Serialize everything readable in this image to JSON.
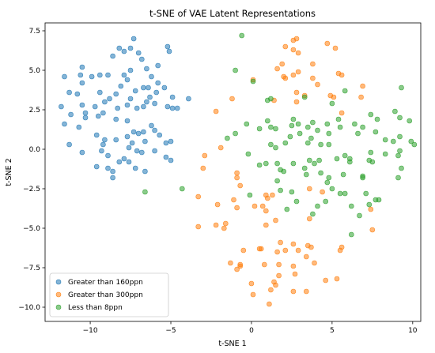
{
  "chart_data": {
    "type": "scatter",
    "title": "t-SNE of VAE Latent Representations",
    "xlabel": "t-SNE 1",
    "ylabel": "t-SNE 2",
    "xlim": [
      -12.8,
      10.5
    ],
    "ylim": [
      -10.9,
      8.0
    ],
    "xticks": [
      -10,
      -5,
      0,
      5,
      10
    ],
    "yticks": [
      -10.0,
      -7.5,
      -5.0,
      -2.5,
      0.0,
      2.5,
      5.0,
      7.5
    ],
    "grid": false,
    "legend_position": "lower-left",
    "series": [
      {
        "name": "Greater than 160ppn",
        "color": "#1f77b4",
        "points": [
          [
            -11.6,
            4.6
          ],
          [
            -10.6,
            4.7
          ],
          [
            -10.5,
            5.2
          ],
          [
            -9.9,
            4.6
          ],
          [
            -9.4,
            4.7
          ],
          [
            -8.9,
            4.7
          ],
          [
            -8.2,
            6.4
          ],
          [
            -7.9,
            6.2
          ],
          [
            -7.5,
            6.4
          ],
          [
            -7.3,
            7.0
          ],
          [
            -7.0,
            6.1
          ],
          [
            -6.8,
            5.7
          ],
          [
            -5.2,
            6.5
          ],
          [
            -5.1,
            6.2
          ],
          [
            -5.8,
            5.3
          ],
          [
            -6.5,
            5.1
          ],
          [
            -7.5,
            5.0
          ],
          [
            -7.9,
            4.7
          ],
          [
            -8.6,
            5.9
          ],
          [
            -7.7,
            4.4
          ],
          [
            -6.2,
            4.6
          ],
          [
            -5.8,
            4.2
          ],
          [
            -5.4,
            3.9
          ],
          [
            -5.9,
            3.6
          ],
          [
            -6.0,
            2.9
          ],
          [
            -4.6,
            2.6
          ],
          [
            -4.9,
            3.3
          ],
          [
            -3.9,
            3.2
          ],
          [
            -5.2,
            2.7
          ],
          [
            -6.7,
            3.9
          ],
          [
            -6.4,
            3.9
          ],
          [
            -6.3,
            3.3
          ],
          [
            -6.5,
            3.0
          ],
          [
            -6.7,
            2.7
          ],
          [
            -7.2,
            3.7
          ],
          [
            -7.5,
            3.2
          ],
          [
            -7.1,
            2.6
          ],
          [
            -7.7,
            2.8
          ],
          [
            -8.1,
            4.0
          ],
          [
            -8.4,
            3.5
          ],
          [
            -8.8,
            3.2
          ],
          [
            -9.1,
            3.0
          ],
          [
            -9.4,
            3.6
          ],
          [
            -9.7,
            2.7
          ],
          [
            -10.5,
            4.2
          ],
          [
            -10.5,
            2.8
          ],
          [
            -10.8,
            3.5
          ],
          [
            -11.3,
            3.6
          ],
          [
            -11.8,
            2.7
          ],
          [
            -11.2,
            2.2
          ],
          [
            -10.3,
            2.3
          ],
          [
            -10.3,
            2.0
          ],
          [
            -9.5,
            2.1
          ],
          [
            -9.2,
            2.3
          ],
          [
            -8.3,
            2.6
          ],
          [
            -8.4,
            1.9
          ],
          [
            -7.7,
            1.8
          ],
          [
            -7.3,
            1.1
          ],
          [
            -7.0,
            1.0
          ],
          [
            -6.7,
            1.1
          ],
          [
            -6.2,
            1.5
          ],
          [
            -6.0,
            1.2
          ],
          [
            -11.6,
            1.6
          ],
          [
            -10.7,
            1.4
          ],
          [
            -9.6,
            0.9
          ],
          [
            -9.1,
            0.6
          ],
          [
            -9.2,
            0.3
          ],
          [
            -8.4,
            0.6
          ],
          [
            -7.7,
            0.8
          ],
          [
            -7.4,
            0.4
          ],
          [
            -7.6,
            0.1
          ],
          [
            -6.6,
            0.5
          ],
          [
            -5.7,
            0.9
          ],
          [
            -5.3,
            0.4
          ],
          [
            -5.0,
            0.5
          ],
          [
            -4.9,
            2.6
          ],
          [
            -11.3,
            0.3
          ],
          [
            -10.5,
            -0.2
          ],
          [
            -9.3,
            -0.1
          ],
          [
            -8.9,
            -0.4
          ],
          [
            -8.2,
            -0.8
          ],
          [
            -7.6,
            -0.8
          ],
          [
            -7.9,
            -0.6
          ],
          [
            -7.1,
            -0.1
          ],
          [
            -6.8,
            -0.2
          ],
          [
            -6.0,
            -0.1
          ],
          [
            -5.3,
            -0.5
          ],
          [
            -5.0,
            -0.7
          ],
          [
            -7.2,
            -1.2
          ],
          [
            -6.6,
            -1.4
          ],
          [
            -9.6,
            -1.1
          ],
          [
            -8.9,
            -1.2
          ],
          [
            -8.6,
            -1.4
          ],
          [
            -8.6,
            -1.8
          ]
        ]
      },
      {
        "name": "Greater than 300ppn",
        "color": "#ff7f0e",
        "points": [
          [
            2.6,
            6.9
          ],
          [
            2.8,
            7.0
          ],
          [
            4.7,
            6.7
          ],
          [
            5.2,
            6.4
          ],
          [
            2.1,
            6.5
          ],
          [
            2.6,
            6.3
          ],
          [
            2.9,
            6.1
          ],
          [
            1.9,
            5.4
          ],
          [
            3.8,
            5.4
          ],
          [
            1.6,
            5.1
          ],
          [
            2.6,
            4.7
          ],
          [
            2.9,
            4.9
          ],
          [
            5.4,
            4.8
          ],
          [
            5.6,
            4.7
          ],
          [
            2.1,
            4.5
          ],
          [
            2.0,
            4.6
          ],
          [
            3.8,
            4.5
          ],
          [
            4.1,
            4.1
          ],
          [
            0.1,
            4.4
          ],
          [
            6.9,
            4.0
          ],
          [
            2.8,
            3.6
          ],
          [
            3.3,
            3.4
          ],
          [
            4.9,
            3.4
          ],
          [
            5.1,
            3.3
          ],
          [
            6.8,
            3.3
          ],
          [
            1.4,
            3.1
          ],
          [
            2.8,
            3.0
          ],
          [
            -1.2,
            3.2
          ],
          [
            -2.2,
            2.4
          ],
          [
            -1.9,
            0.1
          ],
          [
            5.6,
            2.3
          ],
          [
            -2.9,
            -0.4
          ],
          [
            -3.0,
            -1.2
          ],
          [
            -0.9,
            -1.5
          ],
          [
            -0.9,
            -1.8
          ],
          [
            -0.7,
            -2.3
          ],
          [
            3.6,
            -2.5
          ],
          [
            4.4,
            -2.7
          ],
          [
            -3.3,
            -3.0
          ],
          [
            -1.1,
            -3.2
          ],
          [
            -2.1,
            -3.5
          ],
          [
            -0.9,
            -3.7
          ],
          [
            0.2,
            -3.6
          ],
          [
            0.7,
            -3.6
          ],
          [
            0.9,
            -2.9
          ],
          [
            1.0,
            -3.1
          ],
          [
            1.3,
            -2.9
          ],
          [
            0.9,
            -3.9
          ],
          [
            7.4,
            -3.8
          ],
          [
            1.5,
            -4.5
          ],
          [
            3.6,
            -4.4
          ],
          [
            0.9,
            -4.8
          ],
          [
            -1.6,
            -4.7
          ],
          [
            -1.7,
            -5.0
          ],
          [
            -3.3,
            -4.9
          ],
          [
            -2.2,
            -4.8
          ],
          [
            7.5,
            -5.1
          ],
          [
            1.8,
            -5.9
          ],
          [
            2.6,
            -6.0
          ],
          [
            3.5,
            -6.1
          ],
          [
            3.7,
            -6.2
          ],
          [
            5.6,
            -6.2
          ],
          [
            5.5,
            -6.4
          ],
          [
            0.6,
            -6.3
          ],
          [
            -0.5,
            -6.4
          ],
          [
            0.5,
            -6.3
          ],
          [
            1.6,
            -6.5
          ],
          [
            2.1,
            -6.4
          ],
          [
            2.9,
            -6.4
          ],
          [
            3.4,
            -6.8
          ],
          [
            -1.3,
            -7.2
          ],
          [
            -0.7,
            -7.3
          ],
          [
            -0.7,
            -7.4
          ],
          [
            -0.9,
            -7.6
          ],
          [
            0.8,
            -7.3
          ],
          [
            1.7,
            -7.3
          ],
          [
            2.6,
            -7.4
          ],
          [
            3.9,
            -7.2
          ],
          [
            1.7,
            -8.0
          ],
          [
            1.4,
            -8.4
          ],
          [
            2.7,
            -7.9
          ],
          [
            1.5,
            -8.6
          ],
          [
            5.3,
            -8.2
          ],
          [
            0.0,
            -8.5
          ],
          [
            0.1,
            -9.2
          ],
          [
            1.2,
            -8.9
          ],
          [
            2.6,
            -9.0
          ],
          [
            3.4,
            -9.0
          ],
          [
            1.1,
            -9.8
          ],
          [
            4.6,
            -8.3
          ]
        ]
      },
      {
        "name": "Less than 8ppn",
        "color": "#2ca02c",
        "points": [
          [
            -0.6,
            7.2
          ],
          [
            -1.0,
            5.0
          ],
          [
            0.1,
            4.3
          ],
          [
            5.8,
            3.7
          ],
          [
            9.3,
            3.9
          ],
          [
            1.2,
            3.2
          ],
          [
            1.0,
            3.1
          ],
          [
            3.3,
            3.3
          ],
          [
            5.0,
            2.9
          ],
          [
            7.4,
            2.2
          ],
          [
            7.8,
            1.9
          ],
          [
            8.9,
            2.4
          ],
          [
            9.2,
            2.0
          ],
          [
            9.8,
            1.8
          ],
          [
            6.4,
            1.6
          ],
          [
            6.9,
            1.4
          ],
          [
            7.7,
            1.1
          ],
          [
            8.3,
            0.6
          ],
          [
            8.8,
            0.5
          ],
          [
            9.2,
            0.8
          ],
          [
            9.9,
            0.5
          ],
          [
            10.1,
            0.3
          ],
          [
            9.2,
            -0.1
          ],
          [
            9.1,
            -0.4
          ],
          [
            9.3,
            -1.2
          ],
          [
            9.1,
            -1.8
          ],
          [
            8.3,
            -0.3
          ],
          [
            7.4,
            -0.2
          ],
          [
            7.3,
            -0.7
          ],
          [
            7.5,
            -0.8
          ],
          [
            6.9,
            -1.7
          ],
          [
            6.9,
            -1.8
          ],
          [
            7.1,
            -2.8
          ],
          [
            7.7,
            -3.2
          ],
          [
            7.9,
            -3.2
          ],
          [
            7.3,
            -3.5
          ],
          [
            6.7,
            -4.2
          ],
          [
            6.2,
            -3.6
          ],
          [
            6.2,
            -5.4
          ],
          [
            5.8,
            -2.8
          ],
          [
            5.5,
            -2.8
          ],
          [
            5.0,
            -2.5
          ],
          [
            4.7,
            -2.1
          ],
          [
            4.6,
            -3.3
          ],
          [
            3.8,
            -4.1
          ],
          [
            4.1,
            -3.6
          ],
          [
            2.8,
            -3.3
          ],
          [
            2.5,
            -2.7
          ],
          [
            1.8,
            -2.6
          ],
          [
            1.6,
            -2.0
          ],
          [
            2.2,
            -3.8
          ],
          [
            0.5,
            -1.0
          ],
          [
            0.9,
            -0.9
          ],
          [
            1.6,
            -0.9
          ],
          [
            1.8,
            -1.3
          ],
          [
            2.0,
            -1.4
          ],
          [
            2.6,
            -0.9
          ],
          [
            3.3,
            -1.2
          ],
          [
            3.6,
            -0.7
          ],
          [
            3.9,
            -0.9
          ],
          [
            4.2,
            -0.7
          ],
          [
            3.4,
            -1.6
          ],
          [
            4.3,
            -1.5
          ],
          [
            4.8,
            -1.8
          ],
          [
            5.7,
            -1.6
          ],
          [
            6.1,
            -0.8
          ],
          [
            6.1,
            -0.6
          ],
          [
            5.3,
            -0.6
          ],
          [
            5.8,
            -0.4
          ],
          [
            4.8,
            0.3
          ],
          [
            4.3,
            0.3
          ],
          [
            3.5,
            0.4
          ],
          [
            3.7,
            0.7
          ],
          [
            2.4,
            0.8
          ],
          [
            2.1,
            0.4
          ],
          [
            1.2,
            0.3
          ],
          [
            1.5,
            0.1
          ],
          [
            -0.2,
            -0.3
          ],
          [
            -1.5,
            0.7
          ],
          [
            -1.0,
            1.0
          ],
          [
            -0.3,
            1.6
          ],
          [
            0.5,
            1.3
          ],
          [
            1.0,
            1.8
          ],
          [
            1.2,
            1.4
          ],
          [
            1.5,
            1.3
          ],
          [
            2.5,
            1.5
          ],
          [
            2.6,
            1.9
          ],
          [
            2.9,
            1.6
          ],
          [
            3.5,
            1.4
          ],
          [
            3.8,
            1.7
          ],
          [
            4.7,
            1.6
          ],
          [
            5.5,
            1.4
          ],
          [
            5.4,
            1.9
          ],
          [
            4.1,
            1.2
          ],
          [
            4.8,
            1.0
          ],
          [
            6.6,
            1.0
          ],
          [
            3.0,
            1.0
          ],
          [
            -4.3,
            -2.5
          ],
          [
            -6.6,
            -2.7
          ],
          [
            -0.1,
            -2.9
          ]
        ]
      }
    ]
  }
}
